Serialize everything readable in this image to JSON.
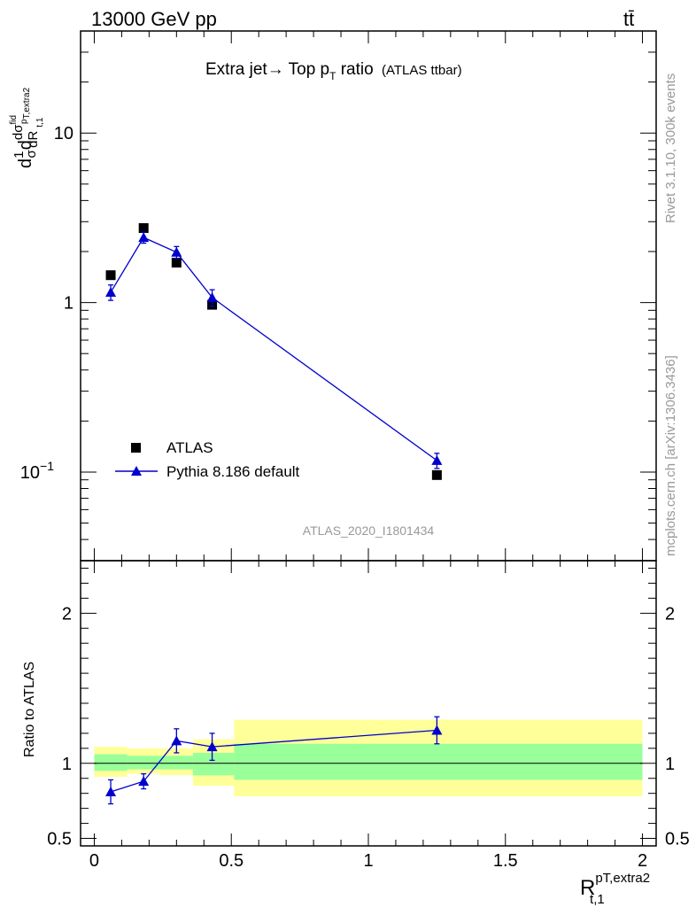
{
  "header": {
    "energy_label": "13000 GeV pp",
    "process_label": "tt̄"
  },
  "side_labels": {
    "rivet": "Rivet 3.1.10,  300k events",
    "mcplots": "mcplots.cern.ch [arXiv:1306.3436]"
  },
  "chart_data": [
    {
      "type": "scatter",
      "title_main": "Extra jet→ Top p",
      "title_sub": "T",
      "title_rest": " ratio",
      "title_small": "(ATLAS ttbar)",
      "ylabel_parts": [
        "d",
        "1",
        "σ",
        "d",
        "dσ",
        "fid",
        "p",
        "T,extra2",
        "dR",
        "t,1"
      ],
      "yscale": "log",
      "ylim": [
        0.03,
        40
      ],
      "xlim": [
        -0.05,
        2.05
      ],
      "yticks": [
        {
          "value": 10,
          "label": "10"
        },
        {
          "value": 1,
          "label": "1"
        },
        {
          "value": 0.1,
          "label": "10",
          "sup": "−1"
        }
      ],
      "analysis_tag": "ATLAS_2020_I1801434",
      "legend_position": "lower-left",
      "series": [
        {
          "name": "ATLAS",
          "marker": "square",
          "color": "#000000",
          "x": [
            0.06,
            0.18,
            0.3,
            0.43,
            1.25
          ],
          "y": [
            1.45,
            2.75,
            1.72,
            0.97,
            0.096
          ],
          "xerr": [
            0.06,
            0.06,
            0.06,
            0.08,
            0.75
          ]
        },
        {
          "name": "Pythia 8.186 default",
          "marker": "triangle",
          "color": "#0000cc",
          "x": [
            0.06,
            0.18,
            0.3,
            0.43,
            1.25
          ],
          "y": [
            1.15,
            2.42,
            1.98,
            1.07,
            0.117
          ],
          "yerr": [
            0.12,
            0.18,
            0.16,
            0.12,
            0.012
          ]
        }
      ]
    },
    {
      "type": "scatter",
      "ylabel": "Ratio to ATLAS",
      "xlabel_main": "R",
      "xlabel_sup": "pT,extra2",
      "xlabel_sub": "t,1",
      "ylim": [
        0.45,
        2.35
      ],
      "xlim": [
        -0.05,
        2.05
      ],
      "xticks": [
        {
          "value": 0,
          "label": "0"
        },
        {
          "value": 0.5,
          "label": "0.5"
        },
        {
          "value": 1,
          "label": "1"
        },
        {
          "value": 1.5,
          "label": "1.5"
        },
        {
          "value": 2,
          "label": "2"
        }
      ],
      "yticks": [
        {
          "value": 0.5,
          "label": "0.5"
        },
        {
          "value": 1,
          "label": "1"
        },
        {
          "value": 2,
          "label": "2"
        }
      ],
      "bands": [
        {
          "xlo": 0.0,
          "xhi": 0.12,
          "yellow": [
            0.91,
            1.11
          ],
          "green": [
            0.95,
            1.06
          ]
        },
        {
          "xlo": 0.12,
          "xhi": 0.24,
          "yellow": [
            0.93,
            1.1
          ],
          "green": [
            0.96,
            1.05
          ]
        },
        {
          "xlo": 0.24,
          "xhi": 0.36,
          "yellow": [
            0.92,
            1.1
          ],
          "green": [
            0.96,
            1.05
          ]
        },
        {
          "xlo": 0.36,
          "xhi": 0.51,
          "yellow": [
            0.85,
            1.16
          ],
          "green": [
            0.92,
            1.07
          ]
        },
        {
          "xlo": 0.51,
          "xhi": 2.0,
          "yellow": [
            0.78,
            1.29
          ],
          "green": [
            0.89,
            1.13
          ]
        }
      ],
      "series": [
        {
          "name": "Pythia 8.186 default",
          "color": "#0000cc",
          "x": [
            0.06,
            0.18,
            0.3,
            0.43,
            1.25
          ],
          "y": [
            0.81,
            0.88,
            1.15,
            1.11,
            1.22
          ],
          "yerr": [
            0.08,
            0.05,
            0.08,
            0.09,
            0.09
          ]
        }
      ]
    }
  ]
}
